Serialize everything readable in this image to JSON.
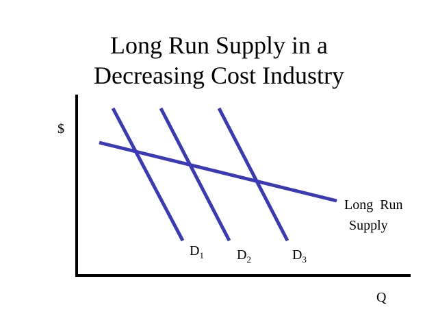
{
  "title": {
    "line1": "Long Run Supply in a",
    "line2": "Decreasing Cost Industry"
  },
  "axes": {
    "y_label": "$",
    "x_label": "Q"
  },
  "curves": [
    {
      "label": "D",
      "subscript": "1"
    },
    {
      "label": "D",
      "subscript": "2"
    },
    {
      "label": "D",
      "subscript": "3"
    }
  ],
  "supply_label": {
    "line1": "Long  Run",
    "line2": "Supply"
  }
}
